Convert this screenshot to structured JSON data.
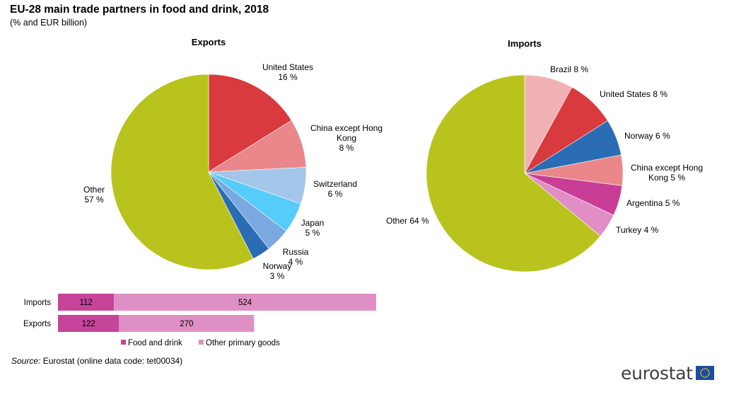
{
  "title": "EU-28 main trade partners in food and drink, 2018",
  "subtitle": "(% and EUR billion)",
  "source": {
    "label": "Source:",
    "text": " Eurostat (online data code: tet00034)"
  },
  "logo": {
    "text": "eurostat",
    "flag_icon": "eu-flag-icon"
  },
  "colors": {
    "other": "#b9c31e",
    "united_states": "#d93a3e",
    "china": "#e9878a",
    "switzerland": "#a3c6ea",
    "japan": "#55ccfa",
    "russia": "#7aa8e0",
    "norway": "#2a6db5",
    "brazil": "#f1b1b4",
    "argentina": "#c83e97",
    "turkey": "#e08ec4",
    "food_and_drink": "#c6449a",
    "other_primary_goods": "#de90c4"
  },
  "chart_data": [
    {
      "type": "pie",
      "title": "Exports",
      "unit": "%",
      "slices": [
        {
          "name": "United States",
          "value": 16,
          "label": [
            "United States",
            "16 %"
          ],
          "color": "#d93a3e"
        },
        {
          "name": "China except Hong Kong",
          "value": 8,
          "label": [
            "China except Hong",
            "Kong",
            "8 %"
          ],
          "color": "#e9878a"
        },
        {
          "name": "Switzerland",
          "value": 6,
          "label": [
            "Switzerland",
            "6 %"
          ],
          "color": "#a3c6ea"
        },
        {
          "name": "Japan",
          "value": 5,
          "label": [
            "Japan",
            "5 %"
          ],
          "color": "#55ccfa"
        },
        {
          "name": "Russia",
          "value": 4,
          "label": [
            "Russia",
            "4 %"
          ],
          "color": "#7aa8e0"
        },
        {
          "name": "Norway",
          "value": 3,
          "label": [
            "Norway",
            "3 %"
          ],
          "color": "#2a6db5"
        },
        {
          "name": "Other",
          "value": 57,
          "label": [
            "Other",
            "57 %"
          ],
          "color": "#b9c31e"
        }
      ]
    },
    {
      "type": "pie",
      "title": "Imports",
      "unit": "%",
      "slices": [
        {
          "name": "Brazil",
          "value": 8,
          "label": [
            "Brazil 8 %"
          ],
          "color": "#f1b1b4"
        },
        {
          "name": "United States",
          "value": 8,
          "label": [
            "United States 8 %"
          ],
          "color": "#d93a3e"
        },
        {
          "name": "Norway",
          "value": 6,
          "label": [
            "Norway 6 %"
          ],
          "color": "#2a6db5"
        },
        {
          "name": "China except Hong Kong",
          "value": 5,
          "label": [
            "China except Hong",
            "Kong 5 %"
          ],
          "color": "#e9878a"
        },
        {
          "name": "Argentina",
          "value": 5,
          "label": [
            "Argentina 5 %"
          ],
          "color": "#c83e97"
        },
        {
          "name": "Turkey",
          "value": 4,
          "label": [
            "Turkey 4 %"
          ],
          "color": "#e08ec4"
        },
        {
          "name": "Other",
          "value": 64,
          "label": [
            "Other 64 %"
          ],
          "color": "#b9c31e"
        }
      ]
    },
    {
      "type": "bar",
      "orientation": "horizontal",
      "stacked": true,
      "unit": "EUR billion",
      "categories": [
        "Imports",
        "Exports"
      ],
      "series": [
        {
          "name": "Food and drink",
          "values": [
            112,
            122
          ],
          "color": "#c6449a"
        },
        {
          "name": "Other primary goods",
          "values": [
            524,
            270
          ],
          "color": "#de90c4"
        }
      ],
      "legend": "bottom"
    }
  ]
}
